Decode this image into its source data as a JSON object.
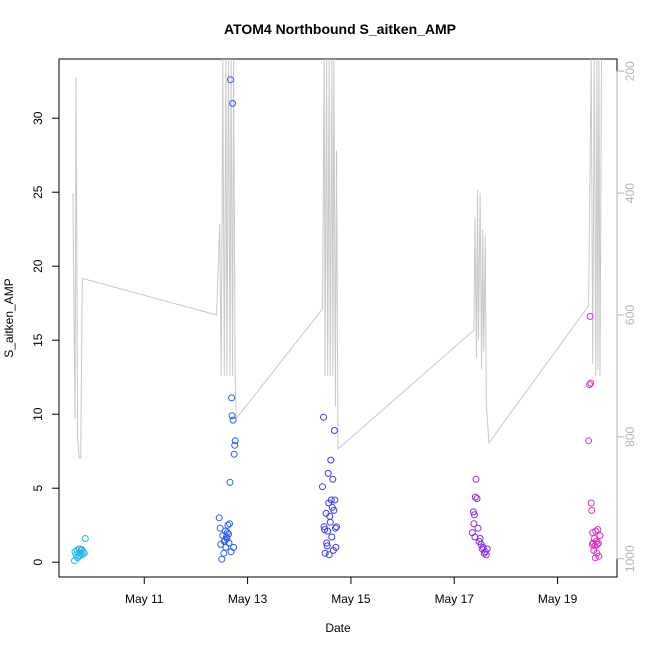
{
  "chart_data": {
    "type": "scatter",
    "title": "ATOM4 Northbound S_aitken_AMP",
    "xlabel": "Date",
    "ylabel": "S_aitken_AMP",
    "x_ticks": [
      {
        "day": 11,
        "label": "May 11"
      },
      {
        "day": 13,
        "label": "May 13"
      },
      {
        "day": 15,
        "label": "May 15"
      },
      {
        "day": 17,
        "label": "May 17"
      },
      {
        "day": 19,
        "label": "May 19"
      }
    ],
    "y_ticks": [
      0,
      5,
      10,
      15,
      20,
      25,
      30
    ],
    "right_ticks": [
      200,
      400,
      600,
      800,
      1000
    ],
    "xlim": [
      9.35,
      20.15
    ],
    "ylim": [
      -1.0,
      34.0
    ],
    "right_ylim": [
      1030,
      180
    ],
    "points": [
      {
        "day": 9.65,
        "v": 0.1,
        "c": "#23b4ea"
      },
      {
        "day": 9.66,
        "v": 0.7,
        "c": "#23b4ea"
      },
      {
        "day": 9.68,
        "v": 0.5,
        "c": "#23b4ea"
      },
      {
        "day": 9.7,
        "v": 0.8,
        "c": "#23b4ea"
      },
      {
        "day": 9.72,
        "v": 0.4,
        "c": "#23b4ea"
      },
      {
        "day": 9.74,
        "v": 0.9,
        "c": "#23b4ea"
      },
      {
        "day": 9.76,
        "v": 0.6,
        "c": "#23b4ea"
      },
      {
        "day": 9.78,
        "v": 0.8,
        "c": "#23b4ea"
      },
      {
        "day": 9.8,
        "v": 0.5,
        "c": "#23b4ea"
      },
      {
        "day": 9.82,
        "v": 0.7,
        "c": "#23b4ea"
      },
      {
        "day": 9.84,
        "v": 0.6,
        "c": "#23b4ea"
      },
      {
        "day": 9.86,
        "v": 1.6,
        "c": "#23b4ea"
      },
      {
        "day": 9.71,
        "v": 0.3,
        "c": "#23b4ea"
      },
      {
        "day": 9.75,
        "v": 0.45,
        "c": "#23b4ea"
      },
      {
        "day": 9.79,
        "v": 0.85,
        "c": "#23b4ea"
      },
      {
        "day": 12.45,
        "v": 3.0,
        "c": "#2f5ef0"
      },
      {
        "day": 12.47,
        "v": 2.3,
        "c": "#2f5ef0"
      },
      {
        "day": 12.48,
        "v": 1.2,
        "c": "#2f5ef0"
      },
      {
        "day": 12.5,
        "v": 0.2,
        "c": "#2f5ef0"
      },
      {
        "day": 12.52,
        "v": 1.8,
        "c": "#2f5ef0"
      },
      {
        "day": 12.54,
        "v": 0.6,
        "c": "#2f5ef0"
      },
      {
        "day": 12.55,
        "v": 1.4,
        "c": "#2f5ef0"
      },
      {
        "day": 12.57,
        "v": 2.1,
        "c": "#2f5ef0"
      },
      {
        "day": 12.58,
        "v": 1.0,
        "c": "#2f5ef0"
      },
      {
        "day": 12.6,
        "v": 1.6,
        "c": "#2f5ef0"
      },
      {
        "day": 12.62,
        "v": 2.5,
        "c": "#2f5ef0"
      },
      {
        "day": 12.63,
        "v": 1.9,
        "c": "#2f5ef0"
      },
      {
        "day": 12.64,
        "v": 1.3,
        "c": "#2f5ef0"
      },
      {
        "day": 12.65,
        "v": 2.6,
        "c": "#2f5ef0"
      },
      {
        "day": 12.66,
        "v": 5.4,
        "c": "#2f5ef0"
      },
      {
        "day": 12.67,
        "v": 32.6,
        "c": "#2f5ef0"
      },
      {
        "day": 12.68,
        "v": 0.7,
        "c": "#2f5ef0"
      },
      {
        "day": 12.69,
        "v": 11.1,
        "c": "#2f5ef0"
      },
      {
        "day": 12.7,
        "v": 9.9,
        "c": "#2f5ef0"
      },
      {
        "day": 12.71,
        "v": 31.0,
        "c": "#2f5ef0"
      },
      {
        "day": 12.72,
        "v": 9.6,
        "c": "#2f5ef0"
      },
      {
        "day": 12.73,
        "v": 1.0,
        "c": "#2f5ef0"
      },
      {
        "day": 12.74,
        "v": 7.3,
        "c": "#2f5ef0"
      },
      {
        "day": 12.75,
        "v": 7.9,
        "c": "#2f5ef0"
      },
      {
        "day": 12.76,
        "v": 8.2,
        "c": "#2f5ef0"
      },
      {
        "day": 12.56,
        "v": 1.5,
        "c": "#2f5ef0"
      },
      {
        "day": 12.59,
        "v": 1.7,
        "c": "#2f5ef0"
      },
      {
        "day": 12.61,
        "v": 2.0,
        "c": "#2f5ef0"
      },
      {
        "day": 14.45,
        "v": 5.1,
        "c": "#3d3ef0"
      },
      {
        "day": 14.47,
        "v": 9.8,
        "c": "#3d3ef0"
      },
      {
        "day": 14.48,
        "v": 2.4,
        "c": "#3d3ef0"
      },
      {
        "day": 14.5,
        "v": 0.6,
        "c": "#3d3ef0"
      },
      {
        "day": 14.52,
        "v": 3.3,
        "c": "#3d3ef0"
      },
      {
        "day": 14.53,
        "v": 1.3,
        "c": "#3d3ef0"
      },
      {
        "day": 14.55,
        "v": 2.1,
        "c": "#3d3ef0"
      },
      {
        "day": 14.56,
        "v": 6.0,
        "c": "#3d3ef0"
      },
      {
        "day": 14.57,
        "v": 4.0,
        "c": "#3d3ef0"
      },
      {
        "day": 14.58,
        "v": 0.5,
        "c": "#3d3ef0"
      },
      {
        "day": 14.6,
        "v": 2.7,
        "c": "#3d3ef0"
      },
      {
        "day": 14.61,
        "v": 6.9,
        "c": "#3d3ef0"
      },
      {
        "day": 14.62,
        "v": 4.2,
        "c": "#3d3ef0"
      },
      {
        "day": 14.63,
        "v": 1.7,
        "c": "#3d3ef0"
      },
      {
        "day": 14.64,
        "v": 3.7,
        "c": "#3d3ef0"
      },
      {
        "day": 14.65,
        "v": 5.6,
        "c": "#3d3ef0"
      },
      {
        "day": 14.66,
        "v": 0.8,
        "c": "#3d3ef0"
      },
      {
        "day": 14.67,
        "v": 3.5,
        "c": "#3d3ef0"
      },
      {
        "day": 14.68,
        "v": 8.9,
        "c": "#3d3ef0"
      },
      {
        "day": 14.69,
        "v": 4.2,
        "c": "#3d3ef0"
      },
      {
        "day": 14.7,
        "v": 2.3,
        "c": "#3d3ef0"
      },
      {
        "day": 14.71,
        "v": 1.0,
        "c": "#3d3ef0"
      },
      {
        "day": 14.72,
        "v": 2.4,
        "c": "#3d3ef0"
      },
      {
        "day": 14.49,
        "v": 2.2,
        "c": "#3d3ef0"
      },
      {
        "day": 14.54,
        "v": 1.1,
        "c": "#3d3ef0"
      },
      {
        "day": 14.59,
        "v": 3.1,
        "c": "#3d3ef0"
      },
      {
        "day": 17.35,
        "v": 2.0,
        "c": "#8a2ce8"
      },
      {
        "day": 17.37,
        "v": 3.4,
        "c": "#8a2ce8"
      },
      {
        "day": 17.38,
        "v": 2.6,
        "c": "#8a2ce8"
      },
      {
        "day": 17.4,
        "v": 1.7,
        "c": "#8a2ce8"
      },
      {
        "day": 17.41,
        "v": 4.4,
        "c": "#8a2ce8"
      },
      {
        "day": 17.42,
        "v": 5.6,
        "c": "#8a2ce8"
      },
      {
        "day": 17.44,
        "v": 4.3,
        "c": "#8a2ce8"
      },
      {
        "day": 17.46,
        "v": 2.3,
        "c": "#8a2ce8"
      },
      {
        "day": 17.5,
        "v": 1.6,
        "c": "#8a2ce8"
      },
      {
        "day": 17.52,
        "v": 1.2,
        "c": "#8a2ce8"
      },
      {
        "day": 17.54,
        "v": 0.9,
        "c": "#8a2ce8"
      },
      {
        "day": 17.56,
        "v": 1.0,
        "c": "#8a2ce8"
      },
      {
        "day": 17.58,
        "v": 0.6,
        "c": "#8a2ce8"
      },
      {
        "day": 17.6,
        "v": 0.7,
        "c": "#8a2ce8"
      },
      {
        "day": 17.62,
        "v": 0.5,
        "c": "#8a2ce8"
      },
      {
        "day": 17.64,
        "v": 0.9,
        "c": "#8a2ce8"
      },
      {
        "day": 17.39,
        "v": 3.2,
        "c": "#8a2ce8"
      },
      {
        "day": 17.48,
        "v": 1.4,
        "c": "#8a2ce8"
      },
      {
        "day": 19.6,
        "v": 8.2,
        "c": "#e030c8"
      },
      {
        "day": 19.62,
        "v": 12.0,
        "c": "#e030c8"
      },
      {
        "day": 19.63,
        "v": 16.6,
        "c": "#e030c8"
      },
      {
        "day": 19.64,
        "v": 12.1,
        "c": "#e030c8"
      },
      {
        "day": 19.65,
        "v": 4.0,
        "c": "#e030c8"
      },
      {
        "day": 19.66,
        "v": 3.5,
        "c": "#e030c8"
      },
      {
        "day": 19.67,
        "v": 1.2,
        "c": "#e030c8"
      },
      {
        "day": 19.68,
        "v": 2.0,
        "c": "#e030c8"
      },
      {
        "day": 19.69,
        "v": 1.3,
        "c": "#e030c8"
      },
      {
        "day": 19.7,
        "v": 0.8,
        "c": "#e030c8"
      },
      {
        "day": 19.71,
        "v": 1.6,
        "c": "#e030c8"
      },
      {
        "day": 19.72,
        "v": 1.1,
        "c": "#e030c8"
      },
      {
        "day": 19.73,
        "v": 0.3,
        "c": "#e030c8"
      },
      {
        "day": 19.74,
        "v": 2.1,
        "c": "#e030c8"
      },
      {
        "day": 19.75,
        "v": 1.4,
        "c": "#e030c8"
      },
      {
        "day": 19.76,
        "v": 0.6,
        "c": "#e030c8"
      },
      {
        "day": 19.77,
        "v": 1.2,
        "c": "#e030c8"
      },
      {
        "day": 19.78,
        "v": 2.2,
        "c": "#e030c8"
      },
      {
        "day": 19.79,
        "v": 1.3,
        "c": "#e030c8"
      },
      {
        "day": 19.8,
        "v": 0.4,
        "c": "#e030c8"
      },
      {
        "day": 19.82,
        "v": 1.8,
        "c": "#e030c8"
      }
    ],
    "altitude": [
      [
        9.62,
        400
      ],
      [
        9.66,
        770
      ],
      [
        9.68,
        210
      ],
      [
        9.71,
        800
      ],
      [
        9.74,
        835
      ],
      [
        9.77,
        835
      ],
      [
        9.8,
        540
      ],
      [
        12.4,
        600
      ],
      [
        12.46,
        450
      ],
      [
        12.49,
        700
      ],
      [
        12.52,
        180
      ],
      [
        12.55,
        700
      ],
      [
        12.58,
        180
      ],
      [
        12.6,
        700
      ],
      [
        12.63,
        180
      ],
      [
        12.66,
        700
      ],
      [
        12.68,
        180
      ],
      [
        12.71,
        700
      ],
      [
        12.73,
        180
      ],
      [
        12.76,
        700
      ],
      [
        12.78,
        770
      ],
      [
        14.45,
        590
      ],
      [
        14.48,
        180
      ],
      [
        14.5,
        700
      ],
      [
        14.53,
        180
      ],
      [
        14.55,
        700
      ],
      [
        14.58,
        180
      ],
      [
        14.6,
        700
      ],
      [
        14.63,
        180
      ],
      [
        14.65,
        700
      ],
      [
        14.67,
        180
      ],
      [
        14.7,
        750
      ],
      [
        14.72,
        330
      ],
      [
        14.75,
        820
      ],
      [
        17.38,
        625
      ],
      [
        17.4,
        440
      ],
      [
        17.43,
        670
      ],
      [
        17.45,
        395
      ],
      [
        17.47,
        640
      ],
      [
        17.5,
        400
      ],
      [
        17.53,
        690
      ],
      [
        17.55,
        460
      ],
      [
        17.57,
        660
      ],
      [
        17.6,
        470
      ],
      [
        17.62,
        745
      ],
      [
        17.67,
        810
      ],
      [
        19.6,
        585
      ],
      [
        19.65,
        180
      ],
      [
        19.68,
        680
      ],
      [
        19.71,
        180
      ],
      [
        19.74,
        700
      ],
      [
        19.76,
        180
      ],
      [
        19.78,
        690
      ],
      [
        19.8,
        180
      ],
      [
        19.82,
        700
      ],
      [
        19.85,
        180
      ]
    ]
  }
}
